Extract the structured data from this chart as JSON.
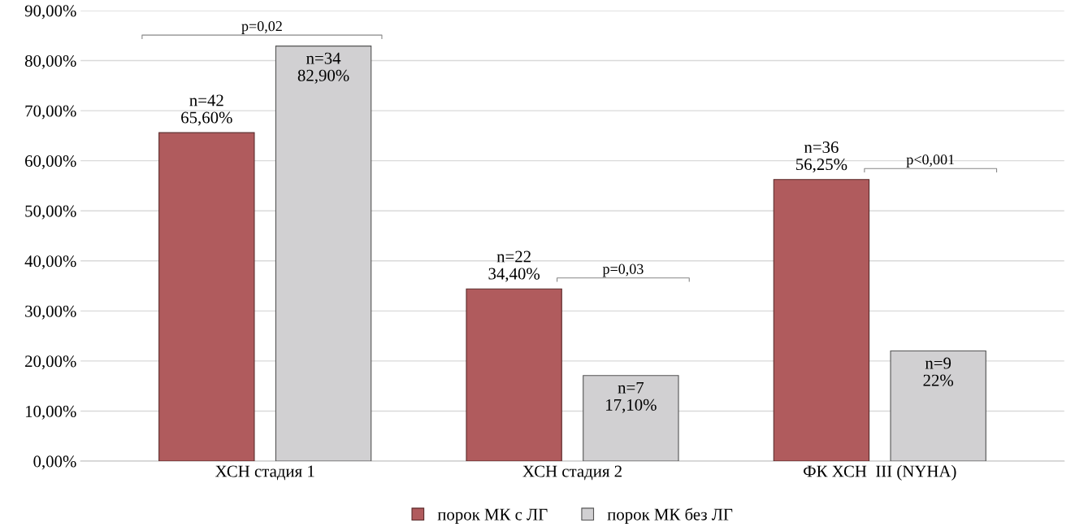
{
  "chart_data": {
    "type": "bar",
    "categories": [
      "ХСН стадия 1",
      "ХСН стадия 2",
      "ФК ХСН  III (NYHA)"
    ],
    "series": [
      {
        "name": "порок МК с ЛГ",
        "color": "#b05b5d",
        "values": [
          65.6,
          34.4,
          56.25
        ],
        "value_labels": [
          "n=42\n65,60%",
          "n=22\n34,40%",
          "n=36\n56,25%"
        ]
      },
      {
        "name": "порок МК без ЛГ",
        "color": "#d1d0d2",
        "values": [
          82.9,
          17.1,
          22
        ],
        "value_labels": [
          "n=34\n82,90%",
          "n=7\n17,10%",
          "n=9\n22%"
        ]
      }
    ],
    "ylim": [
      0,
      90
    ],
    "yticks": [
      {
        "value": 0,
        "label": "0,00%"
      },
      {
        "value": 10,
        "label": "10,00%"
      },
      {
        "value": 20,
        "label": "20,00%"
      },
      {
        "value": 30,
        "label": "30,00%"
      },
      {
        "value": 40,
        "label": "40,00%"
      },
      {
        "value": 50,
        "label": "50,00%"
      },
      {
        "value": 60,
        "label": "60,00%"
      },
      {
        "value": 70,
        "label": "70,00%"
      },
      {
        "value": 80,
        "label": "80,00%"
      },
      {
        "value": 90,
        "label": "90,00%"
      }
    ],
    "annotations": [
      "p=0,02",
      "p=0,03",
      "p<0,001"
    ],
    "grid": "y",
    "legend": "bottom"
  }
}
